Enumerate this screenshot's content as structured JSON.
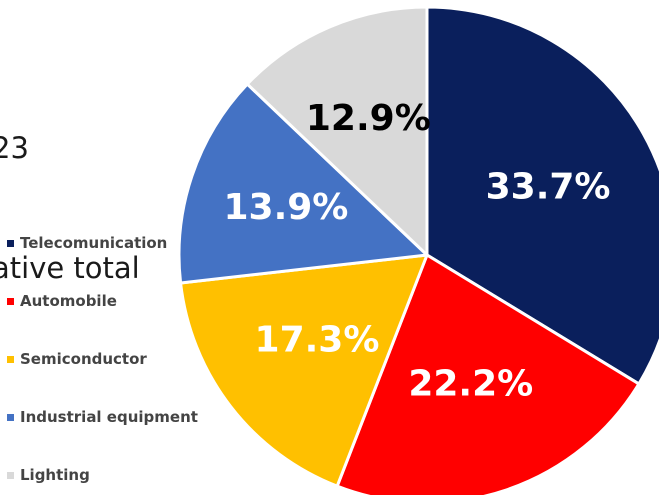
{
  "title_lines": [
    "23",
    "ative total"
  ],
  "chart_data": {
    "type": "pie",
    "start_angle_deg": 0,
    "direction": "clockwise",
    "slices": [
      {
        "label": "Telecomunication",
        "value": 33.7,
        "display": "33.7%",
        "color": "#0a1f5c",
        "label_color": "#ffffff"
      },
      {
        "label": "Automobile",
        "value": 22.2,
        "display": "22.2%",
        "color": "#ff0000",
        "label_color": "#ffffff"
      },
      {
        "label": "Semiconductor",
        "value": 17.3,
        "display": "17.3%",
        "color": "#ffc000",
        "label_color": "#ffffff"
      },
      {
        "label": "Industrial equipment",
        "value": 13.9,
        "display": "13.9%",
        "color": "#4472c4",
        "label_color": "#ffffff"
      },
      {
        "label": "Lighting",
        "value": 12.9,
        "display": "12.9%",
        "color": "#d9d9d9",
        "label_color": "#000000"
      }
    ],
    "legend_position": "left"
  }
}
